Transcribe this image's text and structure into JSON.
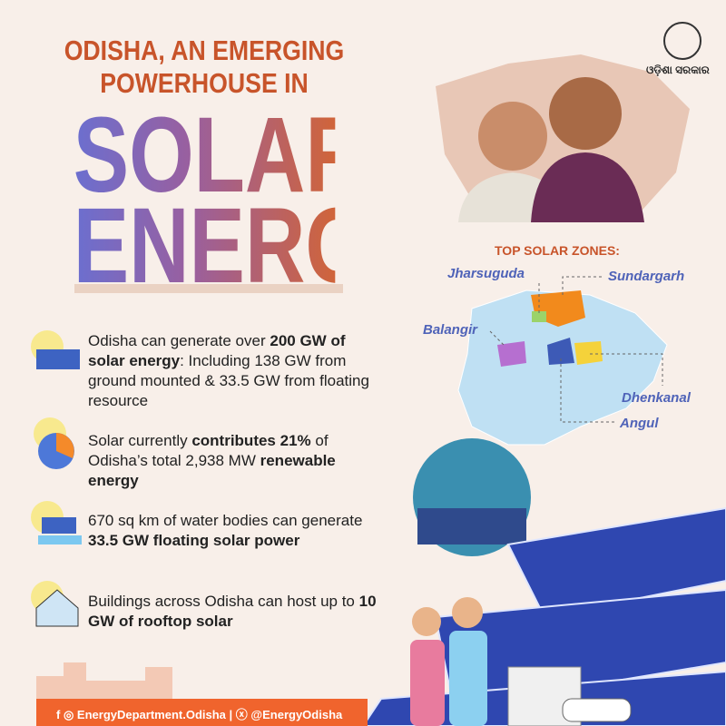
{
  "header": {
    "line1": "ODISHA, AN EMERGING",
    "line2": "POWERHOUSE IN",
    "line3": "SOLAR",
    "line4": "ENERGY"
  },
  "logo": {
    "text": "ଓଡ଼ିଶା ସରକାର"
  },
  "map": {
    "title": "TOP SOLAR ZONES:",
    "zones": [
      "Jharsuguda",
      "Sundargarh",
      "Balangir",
      "Dhenkanal",
      "Angul"
    ]
  },
  "facts": [
    [
      {
        "text": "Odisha can generate over ",
        "bold": false
      },
      {
        "text": "200 GW of solar energy",
        "bold": true
      },
      {
        "text": ": Including 138 GW from ground mounted & 33.5 GW from floating resource",
        "bold": false
      }
    ],
    [
      {
        "text": "Solar currently ",
        "bold": false
      },
      {
        "text": "contributes 21%",
        "bold": true
      },
      {
        "text": " of Odisha’s total 2,938 MW ",
        "bold": false
      },
      {
        "text": "renewable energy",
        "bold": true
      }
    ],
    [
      {
        "text": "670 sq km of water bodies can generate ",
        "bold": false
      },
      {
        "text": "33.5 GW floating solar power",
        "bold": true
      }
    ],
    [
      {
        "text": "Buildings across Odisha can host up to ",
        "bold": false
      },
      {
        "text": "10 GW of rooftop solar",
        "bold": true
      }
    ]
  ],
  "footer": {
    "facebook": "EnergyDepartment.Odisha",
    "x": "@EnergyOdisha"
  }
}
